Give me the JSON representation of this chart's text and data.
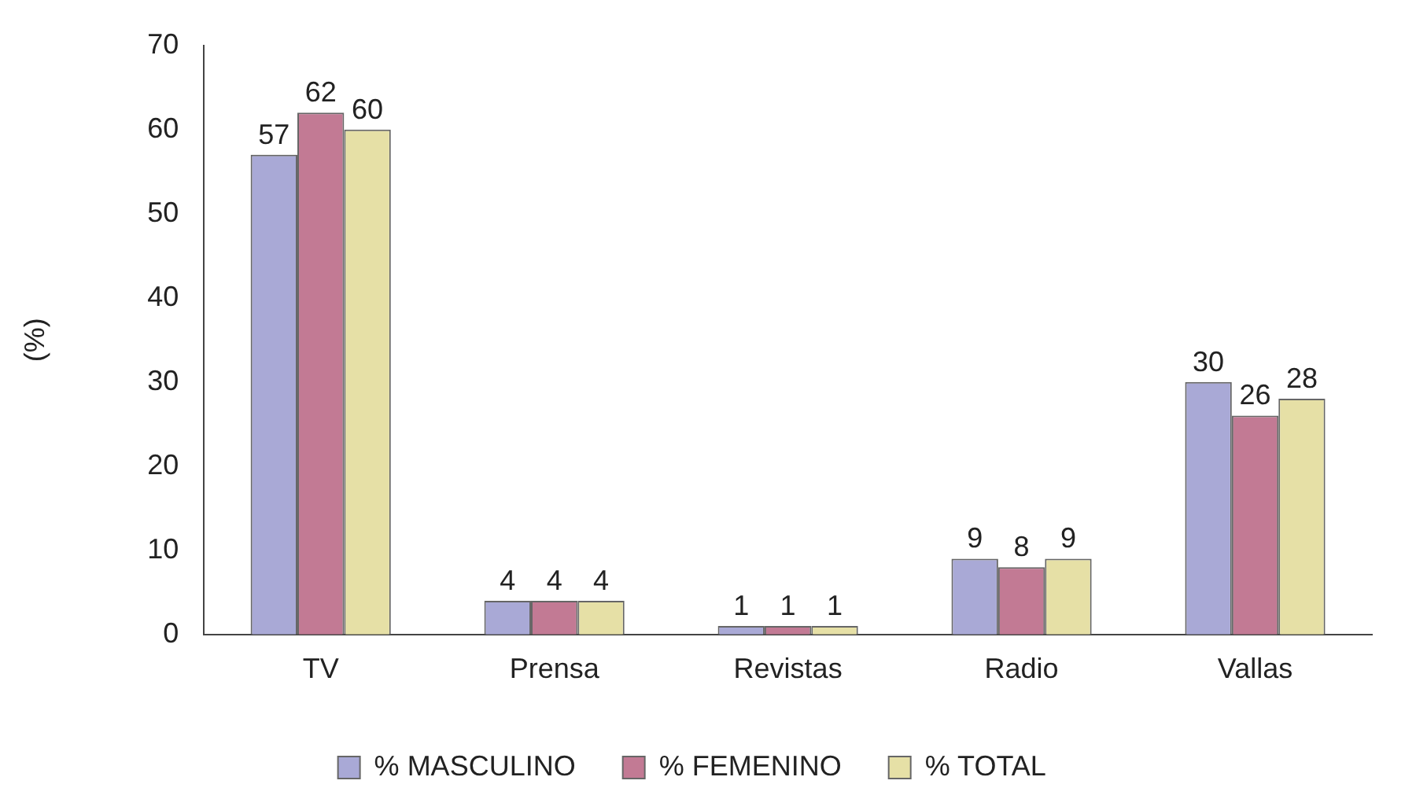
{
  "chart_data": {
    "type": "bar",
    "ylabel": "(%)",
    "categories": [
      "TV",
      "Prensa",
      "Revistas",
      "Radio",
      "Vallas"
    ],
    "series": [
      {
        "name": "% MASCULINO",
        "color": "#a9a9d6",
        "values": [
          57,
          4,
          1,
          9,
          30
        ]
      },
      {
        "name": "% FEMENINO",
        "color": "#c27a94",
        "values": [
          62,
          4,
          1,
          8,
          26
        ]
      },
      {
        "name": "% TOTAL",
        "color": "#e6e0a6",
        "values": [
          60,
          4,
          1,
          9,
          28
        ]
      }
    ],
    "ylim": [
      0,
      70
    ],
    "yticks": [
      0,
      10,
      20,
      30,
      40,
      50,
      60,
      70
    ],
    "grid": false,
    "legend": "bottom",
    "data_labels": true
  }
}
